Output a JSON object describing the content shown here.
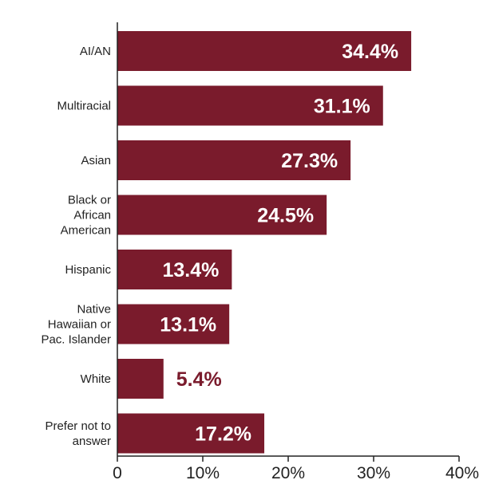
{
  "chart_data": {
    "type": "bar",
    "orientation": "horizontal",
    "categories": [
      [
        "AI/AN"
      ],
      [
        "Multiracial"
      ],
      [
        "Asian"
      ],
      [
        "Black or",
        "African",
        "American"
      ],
      [
        "Hispanic"
      ],
      [
        "Native",
        "Hawaiian or",
        "Pac. Islander"
      ],
      [
        "White"
      ],
      [
        "Prefer not to",
        "answer"
      ]
    ],
    "values": [
      34.4,
      31.1,
      27.3,
      24.5,
      13.4,
      13.1,
      5.4,
      17.2
    ],
    "value_labels": [
      "34.4%",
      "31.1%",
      "27.3%",
      "24.5%",
      "13.4%",
      "13.1%",
      "5.4%",
      "17.2%"
    ],
    "xlim": [
      0,
      40
    ],
    "x_ticks": [
      0,
      10,
      20,
      30,
      40
    ],
    "x_tick_labels": [
      "0",
      "10%",
      "20%",
      "30%",
      "40%"
    ],
    "grid": false,
    "colors": {
      "bar": "#7a1b2c",
      "label_inside": "#ffffff",
      "label_outside": "#7a1b2c",
      "axis": "#222222"
    }
  }
}
